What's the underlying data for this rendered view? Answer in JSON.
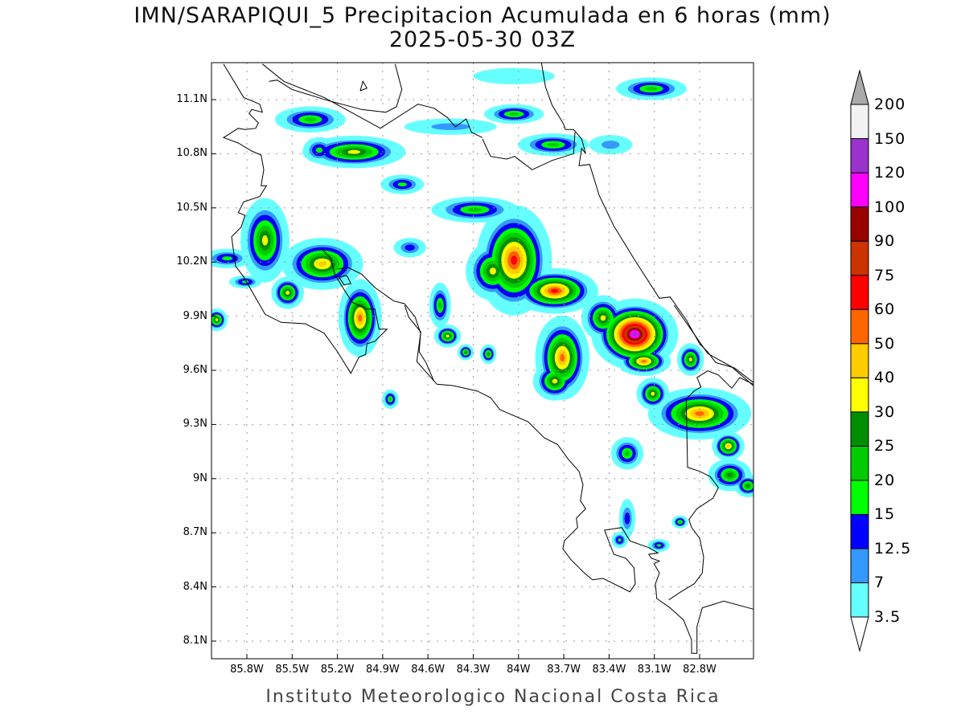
{
  "title": {
    "line1": "IMN/SARAPIQUI_5 Precipitacion Acumulada en 6 horas (mm)",
    "line2": "2025-05-30 03Z"
  },
  "footer": "Instituto Meteorologico Nacional Costa Rica",
  "chart_data": {
    "type": "heatmap",
    "title": "IMN/SARAPIQUI_5 Precipitacion Acumulada en 6 horas (mm) 2025-05-30 03Z",
    "units": "mm",
    "grid": true,
    "lon_range_W": [
      86.03,
      82.44
    ],
    "lat_range_N": [
      8.0,
      11.3
    ],
    "lat_ticks": [
      "11.1N",
      "10.8N",
      "10.5N",
      "10.2N",
      "9.9N",
      "9.6N",
      "9.3N",
      "9N",
      "8.7N",
      "8.4N",
      "8.1N"
    ],
    "lat_values": [
      11.1,
      10.8,
      10.5,
      10.2,
      9.9,
      9.6,
      9.3,
      9.0,
      8.7,
      8.4,
      8.1
    ],
    "lon_ticks": [
      "85.8W",
      "85.5W",
      "85.2W",
      "84.9W",
      "84.6W",
      "84.3W",
      "84W",
      "83.7W",
      "83.4W",
      "83.1W",
      "82.8W"
    ],
    "lon_values": [
      85.8,
      85.5,
      85.2,
      84.9,
      84.6,
      84.3,
      84.0,
      83.7,
      83.4,
      83.1,
      82.8
    ],
    "colorbar": {
      "labels": [
        "3.5",
        "7",
        "12.5",
        "15",
        "20",
        "25",
        "30",
        "40",
        "50",
        "60",
        "75",
        "90",
        "100",
        "120",
        "150",
        "200"
      ],
      "thresholds": [
        3.5,
        7,
        12.5,
        15,
        20,
        25,
        30,
        40,
        50,
        60,
        75,
        90,
        100,
        120,
        150,
        200
      ],
      "colors": [
        "#66ffff",
        "#3399ff",
        "#0000ff",
        "#00ff00",
        "#00cc00",
        "#008f00",
        "#ffff00",
        "#ffcc00",
        "#ff6600",
        "#ff0000",
        "#cc3300",
        "#990000",
        "#ff00ff",
        "#9933cc",
        "#f2f2f2"
      ],
      "over_color": "#aaaaaa",
      "under_color": "#ffffff"
    },
    "precip_cells": [
      {
        "lon": 85.38,
        "lat": 10.99,
        "peak": 20,
        "rlon": 0.13,
        "rlat": 0.04
      },
      {
        "lon": 85.09,
        "lat": 10.81,
        "peak": 30,
        "rlon": 0.19,
        "rlat": 0.05
      },
      {
        "lon": 85.32,
        "lat": 10.82,
        "peak": 15,
        "rlon": 0.06,
        "rlat": 0.04
      },
      {
        "lon": 84.77,
        "lat": 10.63,
        "peak": 15,
        "rlon": 0.08,
        "rlat": 0.03
      },
      {
        "lon": 84.29,
        "lat": 10.49,
        "peak": 20,
        "rlon": 0.16,
        "rlat": 0.04
      },
      {
        "lon": 85.68,
        "lat": 10.32,
        "peak": 30,
        "rlon": 0.09,
        "rlat": 0.13
      },
      {
        "lon": 85.3,
        "lat": 10.19,
        "peak": 40,
        "rlon": 0.15,
        "rlat": 0.08
      },
      {
        "lon": 85.53,
        "lat": 10.03,
        "peak": 30,
        "rlon": 0.06,
        "rlat": 0.05
      },
      {
        "lon": 85.05,
        "lat": 9.89,
        "peak": 50,
        "rlon": 0.08,
        "rlat": 0.12
      },
      {
        "lon": 85.93,
        "lat": 10.22,
        "peak": 15,
        "rlon": 0.09,
        "rlat": 0.03
      },
      {
        "lon": 85.81,
        "lat": 10.09,
        "peak": 15,
        "rlon": 0.06,
        "rlat": 0.02
      },
      {
        "lon": 86.0,
        "lat": 9.88,
        "peak": 30,
        "rlon": 0.04,
        "rlat": 0.035
      },
      {
        "lon": 84.03,
        "lat": 10.21,
        "peak": 60,
        "rlon": 0.14,
        "rlat": 0.17
      },
      {
        "lon": 83.76,
        "lat": 10.04,
        "peak": 60,
        "rlon": 0.16,
        "rlat": 0.07
      },
      {
        "lon": 84.17,
        "lat": 10.15,
        "peak": 30,
        "rlon": 0.1,
        "rlat": 0.09
      },
      {
        "lon": 83.44,
        "lat": 9.89,
        "peak": 30,
        "rlon": 0.08,
        "rlat": 0.07
      },
      {
        "lon": 83.23,
        "lat": 9.8,
        "peak": 120,
        "rlon": 0.16,
        "rlat": 0.11
      },
      {
        "lon": 83.71,
        "lat": 9.67,
        "peak": 50,
        "rlon": 0.1,
        "rlat": 0.13
      },
      {
        "lon": 83.76,
        "lat": 9.54,
        "peak": 30,
        "rlon": 0.08,
        "rlat": 0.06
      },
      {
        "lon": 84.52,
        "lat": 9.96,
        "peak": 20,
        "rlon": 0.04,
        "rlat": 0.07
      },
      {
        "lon": 84.47,
        "lat": 9.79,
        "peak": 30,
        "rlon": 0.05,
        "rlat": 0.035
      },
      {
        "lon": 83.17,
        "lat": 9.65,
        "peak": 50,
        "rlon": 0.1,
        "rlat": 0.045
      },
      {
        "lon": 82.86,
        "lat": 9.66,
        "peak": 30,
        "rlon": 0.05,
        "rlat": 0.05
      },
      {
        "lon": 82.8,
        "lat": 9.36,
        "peak": 50,
        "rlon": 0.19,
        "rlat": 0.08
      },
      {
        "lon": 83.11,
        "lat": 9.47,
        "peak": 30,
        "rlon": 0.06,
        "rlat": 0.05
      },
      {
        "lon": 82.61,
        "lat": 9.18,
        "peak": 40,
        "rlon": 0.06,
        "rlat": 0.045
      },
      {
        "lon": 83.28,
        "lat": 9.14,
        "peak": 20,
        "rlon": 0.06,
        "rlat": 0.05
      },
      {
        "lon": 82.6,
        "lat": 9.02,
        "peak": 25,
        "rlon": 0.08,
        "rlat": 0.05
      },
      {
        "lon": 82.48,
        "lat": 8.96,
        "peak": 25,
        "rlon": 0.05,
        "rlat": 0.035
      },
      {
        "lon": 84.85,
        "lat": 9.44,
        "peak": 20,
        "rlon": 0.03,
        "rlat": 0.03
      },
      {
        "lon": 83.77,
        "lat": 10.85,
        "peak": 20,
        "rlon": 0.13,
        "rlat": 0.035
      },
      {
        "lon": 84.03,
        "lat": 11.02,
        "peak": 20,
        "rlon": 0.11,
        "rlat": 0.03
      },
      {
        "lon": 83.12,
        "lat": 11.16,
        "peak": 20,
        "rlon": 0.13,
        "rlat": 0.035
      },
      {
        "lon": 84.35,
        "lat": 9.7,
        "peak": 25,
        "rlon": 0.03,
        "rlat": 0.025
      },
      {
        "lon": 84.2,
        "lat": 9.69,
        "peak": 25,
        "rlon": 0.03,
        "rlat": 0.03
      },
      {
        "lon": 83.28,
        "lat": 8.78,
        "peak": 12.5,
        "rlon": 0.03,
        "rlat": 0.06
      },
      {
        "lon": 83.33,
        "lat": 8.66,
        "peak": 15,
        "rlon": 0.03,
        "rlat": 0.025
      },
      {
        "lon": 83.07,
        "lat": 8.63,
        "peak": 15,
        "rlon": 0.04,
        "rlat": 0.02
      },
      {
        "lon": 82.93,
        "lat": 8.76,
        "peak": 20,
        "rlon": 0.03,
        "rlat": 0.02
      },
      {
        "lon": 84.72,
        "lat": 10.28,
        "peak": 12.5,
        "rlon": 0.06,
        "rlat": 0.03
      },
      {
        "lon": 84.45,
        "lat": 10.95,
        "peak": 7,
        "rlon": 0.17,
        "rlat": 0.025
      },
      {
        "lon": 84.03,
        "lat": 11.23,
        "peak": 3.5,
        "rlon": 0.15,
        "rlat": 0.025
      },
      {
        "lon": 83.39,
        "lat": 10.85,
        "peak": 7,
        "rlon": 0.08,
        "rlat": 0.03
      }
    ]
  }
}
